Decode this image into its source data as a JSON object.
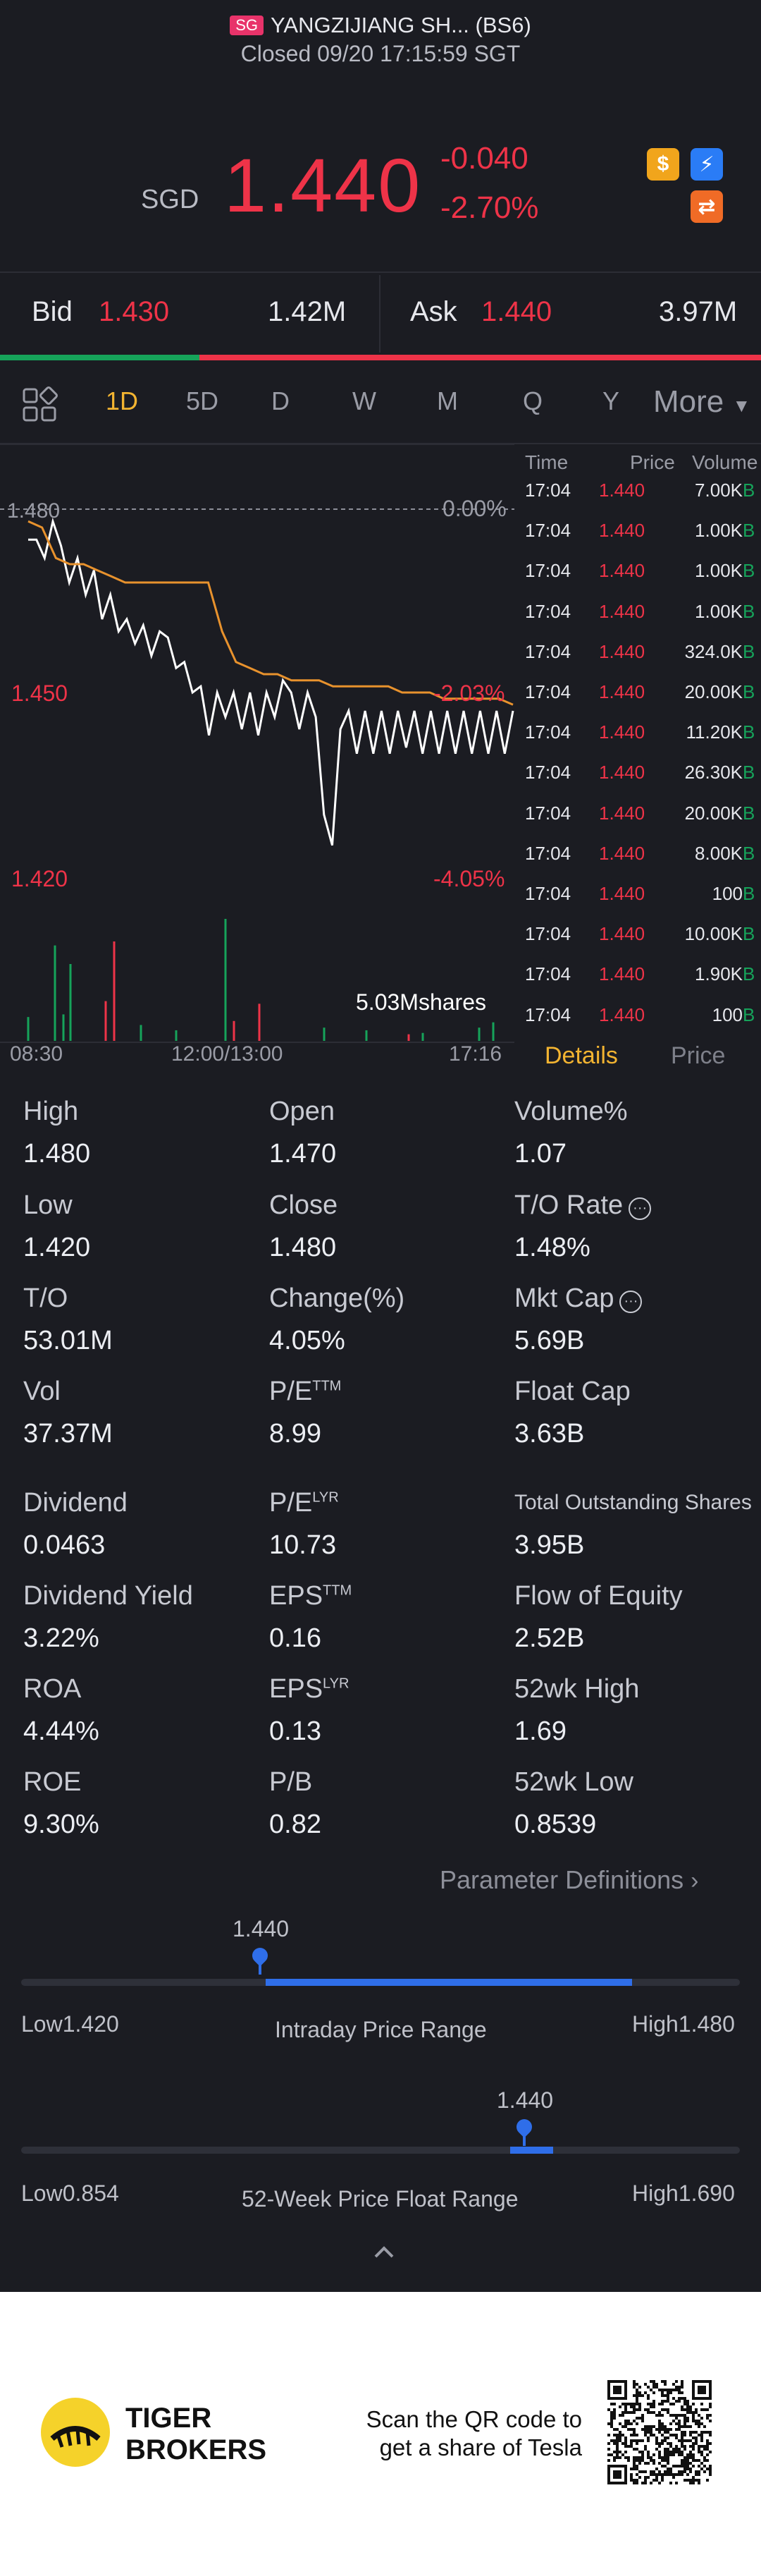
{
  "header": {
    "market_badge": "SG",
    "title": "YANGZIJIANG SH... (BS6)",
    "status": "Closed 09/20 17:15:59 SGT"
  },
  "quote": {
    "currency": "SGD",
    "price": "1.440",
    "change": "-0.040",
    "change_pct": "-2.70%",
    "icons": [
      "dollar-icon",
      "lightning-icon",
      "swap-icon"
    ]
  },
  "bid_ask": {
    "bid_label": "Bid",
    "bid_price": "1.430",
    "bid_volume": "1.42M",
    "ask_label": "Ask",
    "ask_price": "1.440",
    "ask_volume": "3.97M",
    "bid_ratio": 0.262
  },
  "periods": [
    "1D",
    "5D",
    "D",
    "W",
    "M",
    "Q",
    "Y"
  ],
  "active_period": "1D",
  "more_label": "More",
  "chart_data": {
    "type": "line",
    "y_labels": [
      "1.480",
      "1.450",
      "1.420"
    ],
    "pct_labels": [
      "0.00%",
      "-2.03%",
      "-4.05%"
    ],
    "x_labels": [
      "08:30",
      "12:00/13:00",
      "17:16"
    ],
    "volume_label": "5.03Mshares",
    "ylim": [
      1.42,
      1.48
    ],
    "price_series": [
      1.475,
      1.475,
      1.472,
      1.478,
      1.474,
      1.468,
      1.472,
      1.466,
      1.47,
      1.462,
      1.466,
      1.46,
      1.462,
      1.458,
      1.461,
      1.456,
      1.46,
      1.459,
      1.454,
      1.455,
      1.45,
      1.451,
      1.443,
      1.45,
      1.446,
      1.45,
      1.444,
      1.45,
      1.443,
      1.45,
      1.446,
      1.452,
      1.45,
      1.444,
      1.45,
      1.446,
      1.43,
      1.425,
      1.444,
      1.447,
      1.44,
      1.447,
      1.44,
      1.447,
      1.44,
      1.447,
      1.441,
      1.447,
      1.44,
      1.447,
      1.44,
      1.447,
      1.44,
      1.447,
      1.44,
      1.447,
      1.44,
      1.447,
      1.44,
      1.447
    ],
    "avg_series": [
      1.478,
      1.477,
      1.472,
      1.471,
      1.471,
      1.47,
      1.469,
      1.468,
      1.468,
      1.468,
      1.468,
      1.468,
      1.468,
      1.468,
      1.46,
      1.455,
      1.454,
      1.453,
      1.453,
      1.452,
      1.452,
      1.452,
      1.451,
      1.451,
      1.451,
      1.451,
      1.451,
      1.45,
      1.45,
      1.45,
      1.449,
      1.449,
      1.449,
      1.449,
      1.449,
      1.448
    ]
  },
  "ticks_header": {
    "time": "Time",
    "price": "Price",
    "volume": "Volume"
  },
  "ticks": [
    {
      "time": "17:04",
      "price": "1.440",
      "volume": "7.00K",
      "side": "B"
    },
    {
      "time": "17:04",
      "price": "1.440",
      "volume": "1.00K",
      "side": "B"
    },
    {
      "time": "17:04",
      "price": "1.440",
      "volume": "1.00K",
      "side": "B"
    },
    {
      "time": "17:04",
      "price": "1.440",
      "volume": "1.00K",
      "side": "B"
    },
    {
      "time": "17:04",
      "price": "1.440",
      "volume": "324.0K",
      "side": "B"
    },
    {
      "time": "17:04",
      "price": "1.440",
      "volume": "20.00K",
      "side": "B"
    },
    {
      "time": "17:04",
      "price": "1.440",
      "volume": "11.20K",
      "side": "B"
    },
    {
      "time": "17:04",
      "price": "1.440",
      "volume": "26.30K",
      "side": "B"
    },
    {
      "time": "17:04",
      "price": "1.440",
      "volume": "20.00K",
      "side": "B"
    },
    {
      "time": "17:04",
      "price": "1.440",
      "volume": "8.00K",
      "side": "B"
    },
    {
      "time": "17:04",
      "price": "1.440",
      "volume": "100",
      "side": "B"
    },
    {
      "time": "17:04",
      "price": "1.440",
      "volume": "10.00K",
      "side": "B"
    },
    {
      "time": "17:04",
      "price": "1.440",
      "volume": "1.90K",
      "side": "B"
    },
    {
      "time": "17:04",
      "price": "1.440",
      "volume": "100",
      "side": "B"
    }
  ],
  "tabs": {
    "details": "Details",
    "price": "Price"
  },
  "stats": [
    [
      {
        "label": "High",
        "value": "1.480"
      },
      {
        "label": "Open",
        "value": "1.470"
      },
      {
        "label": "Volume%",
        "value": "1.07"
      }
    ],
    [
      {
        "label": "Low",
        "value": "1.420"
      },
      {
        "label": "Close",
        "value": "1.480"
      },
      {
        "label": "T/O Rate",
        "value": "1.48%",
        "info": true
      }
    ],
    [
      {
        "label": "T/O",
        "value": "53.01M"
      },
      {
        "label": "Change(%)",
        "value": "4.05%"
      },
      {
        "label": "Mkt Cap",
        "value": "5.69B",
        "info": true
      }
    ],
    [
      {
        "label": "Vol",
        "value": "37.37M"
      },
      {
        "label": "P/E",
        "sup": "TTM",
        "value": "8.99"
      },
      {
        "label": "Float Cap",
        "value": "3.63B"
      }
    ],
    [
      {
        "label": "Dividend",
        "value": "0.0463"
      },
      {
        "label": "P/E",
        "sup": "LYR",
        "value": "10.73"
      },
      {
        "label": "Total Outstanding Shares",
        "value": "3.95B",
        "small": true
      }
    ],
    [
      {
        "label": "Dividend Yield",
        "value": "3.22%"
      },
      {
        "label": "EPS",
        "sup": "TTM",
        "value": "0.16"
      },
      {
        "label": "Flow of Equity",
        "value": "2.52B"
      }
    ],
    [
      {
        "label": "ROA",
        "value": "4.44%"
      },
      {
        "label": "EPS",
        "sup": "LYR",
        "value": "0.13"
      },
      {
        "label": "52wk High",
        "value": "1.69"
      }
    ],
    [
      {
        "label": "ROE",
        "value": "9.30%"
      },
      {
        "label": "P/B",
        "value": "0.82"
      },
      {
        "label": "52wk Low",
        "value": "0.8539"
      }
    ]
  ],
  "param_def_label": "Parameter Definitions",
  "intraday_range": {
    "current": "1.440",
    "low_label": "Low1.420",
    "high_label": "High1.480",
    "title": "Intraday Price Range",
    "low": 1.42,
    "high": 1.48,
    "value": 1.44,
    "fill_from": 0.34,
    "fill_to": 0.85
  },
  "week52_range": {
    "current": "1.440",
    "low_label": "Low0.854",
    "high_label": "High1.690",
    "title": "52-Week Price Float Range",
    "low": 0.854,
    "high": 1.69,
    "value": 1.44,
    "fill_from": 0.68,
    "fill_to": 0.74
  },
  "footer": {
    "brand_line1": "TIGER",
    "brand_line2": "BROKERS",
    "scan_line1": "Scan the QR code to",
    "scan_line2": "get a share of Tesla"
  },
  "colors": {
    "up": "#16a35a",
    "down": "#ee3348",
    "accent": "#f3b431",
    "range": "#2f6ee9",
    "avg_line": "#e8922d"
  }
}
